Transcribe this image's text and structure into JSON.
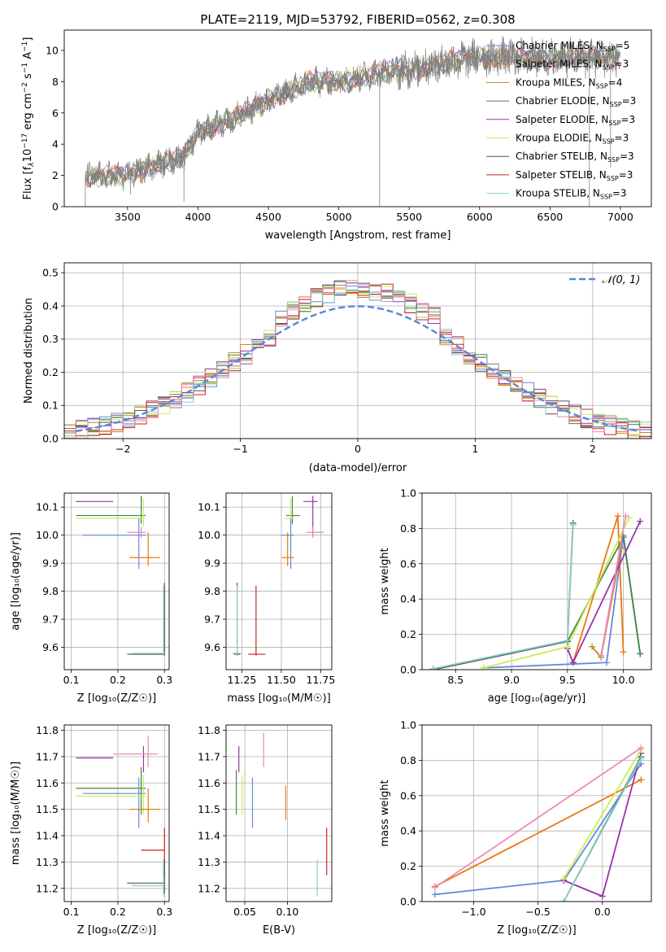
{
  "figure": {
    "title": "PLATE=2119, MJD=53792, FIBERID=0562, z=0.308"
  },
  "colors": {
    "chabrier_miles": "#6688dd",
    "salpeter_miles": "#ee7711",
    "kroupa_miles": "#bb8822",
    "chabrier_elodie": "#448844",
    "salpeter_elodie": "#9933aa",
    "kroupa_elodie": "#ccee55",
    "chabrier_stelib": "#555555",
    "salpeter_stelib": "#cc2222",
    "kroupa_stelib": "#88cccc",
    "pink": "#ee88bb",
    "gaussian": "#5588dd",
    "grid": "#b0b0b0"
  },
  "chart_data": [
    {
      "id": "spectrum",
      "type": "line",
      "title": "PLATE=2119, MJD=53792, FIBERID=0562, z=0.308",
      "xlabel": "wavelength [Angstrom, rest frame]",
      "ylabel_parts": [
        "Flux [f",
        "λ",
        "10",
        "−17",
        " erg cm",
        "−2",
        " s",
        "−1",
        " A",
        "−1",
        "]"
      ],
      "xlim": [
        3050,
        7220
      ],
      "ylim": [
        0,
        11.3
      ],
      "xticks": [
        3500,
        4000,
        4500,
        5000,
        5500,
        6000,
        6500,
        7000
      ],
      "yticks": [
        0,
        2,
        4,
        6,
        8,
        10
      ],
      "grid": false,
      "legend_position": "right",
      "data_range": [
        3200,
        7000
      ],
      "continuum": [
        [
          3200,
          1.9
        ],
        [
          3500,
          2.0
        ],
        [
          3700,
          2.7
        ],
        [
          3900,
          3.2
        ],
        [
          4000,
          4.8
        ],
        [
          4200,
          5.4
        ],
        [
          4500,
          6.8
        ],
        [
          4800,
          8.0
        ],
        [
          5000,
          8.0
        ],
        [
          5300,
          8.6
        ],
        [
          5500,
          8.8
        ],
        [
          5800,
          9.3
        ],
        [
          6000,
          9.6
        ],
        [
          6500,
          9.5
        ],
        [
          7000,
          9.6
        ]
      ],
      "series": [
        {
          "name": "Chabrier MILES, N",
          "sub": "SSP",
          "suffix": "=5",
          "color_key": "chabrier_miles"
        },
        {
          "name": "Salpeter MILES, N",
          "sub": "SSP",
          "suffix": "=3",
          "color_key": "salpeter_miles"
        },
        {
          "name": "Kroupa MILES, N",
          "sub": "SSP",
          "suffix": "=4",
          "color_key": "kroupa_miles"
        },
        {
          "name": "Chabrier ELODIE, N",
          "sub": "SSP",
          "suffix": "=3",
          "color_key": "chabrier_elodie"
        },
        {
          "name": "Salpeter ELODIE, N",
          "sub": "SSP",
          "suffix": "=3",
          "color_key": "salpeter_elodie"
        },
        {
          "name": "Kroupa ELODIE, N",
          "sub": "SSP",
          "suffix": "=3",
          "color_key": "kroupa_elodie"
        },
        {
          "name": "Chabrier STELIB, N",
          "sub": "SSP",
          "suffix": "=3",
          "color_key": "chabrier_stelib"
        },
        {
          "name": "Salpeter STELIB, N",
          "sub": "SSP",
          "suffix": "=3",
          "color_key": "salpeter_stelib"
        },
        {
          "name": "Kroupa STELIB, N",
          "sub": "SSP",
          "suffix": "=3",
          "color_key": "kroupa_stelib"
        }
      ]
    },
    {
      "id": "residuals",
      "type": "histogram",
      "xlabel": "(data-model)/error",
      "ylabel": "Normed distribution",
      "xlim": [
        -2.5,
        2.5
      ],
      "ylim": [
        0,
        0.53
      ],
      "xticks": [
        -2,
        -1,
        0,
        1,
        2
      ],
      "yticks": [
        0.0,
        0.1,
        0.2,
        0.3,
        0.4,
        0.5
      ],
      "grid": true,
      "legend_position": "top-right",
      "legend": "𝒩(0, 1)",
      "bin_width": 0.1,
      "sigma": 1.0,
      "peak_scale": 1.13,
      "model_colors": [
        "chabrier_miles",
        "salpeter_miles",
        "kroupa_miles",
        "chabrier_elodie",
        "salpeter_elodie",
        "kroupa_elodie",
        "chabrier_stelib",
        "salpeter_stelib",
        "kroupa_stelib",
        "pink"
      ]
    },
    {
      "id": "z_age",
      "type": "errorbar",
      "xlabel": "Z [log₁₀(Z/Z☉)]",
      "ylabel": "age  [log₁₀(age/yr)]",
      "xlim": [
        0.085,
        0.31
      ],
      "ylim": [
        9.52,
        10.15
      ],
      "xticks": [
        0.1,
        0.2,
        0.3
      ],
      "yticks": [
        9.6,
        9.7,
        9.8,
        9.9,
        10.0,
        10.1
      ],
      "grid": true,
      "points": [
        {
          "color_key": "salpeter_elodie",
          "x": 0.25,
          "xerr": [
            0.11,
            0.19
          ],
          "y": 10.12,
          "yerr": [
            10.09,
            10.14
          ]
        },
        {
          "color_key": "chabrier_elodie",
          "x": 0.25,
          "xerr": [
            0.11,
            0.26
          ],
          "y": 10.07,
          "yerr": [
            10.04,
            10.14
          ]
        },
        {
          "color_key": "kroupa_elodie",
          "x": 0.255,
          "xerr": [
            0.11,
            0.26
          ],
          "y": 10.06,
          "yerr": [
            10.03,
            10.13
          ]
        },
        {
          "color_key": "chabrier_miles",
          "x": 0.245,
          "xerr": [
            0.125,
            0.26
          ],
          "y": 10.0,
          "yerr": [
            9.88,
            10.06
          ]
        },
        {
          "color_key": "pink",
          "x": 0.25,
          "xerr": [
            0.22,
            0.26
          ],
          "y": 10.01,
          "yerr": [
            9.99,
            10.03
          ]
        },
        {
          "color_key": "salpeter_miles",
          "x": 0.265,
          "xerr": [
            0.225,
            0.29
          ],
          "y": 9.92,
          "yerr": [
            9.89,
            10.01
          ]
        },
        {
          "color_key": "chabrier_stelib",
          "x": 0.3,
          "xerr": [
            0.22,
            0.3
          ],
          "y": 9.575,
          "yerr": [
            9.57,
            9.83
          ]
        },
        {
          "color_key": "kroupa_stelib",
          "x": 0.298,
          "xerr": [
            0.23,
            0.3
          ],
          "y": 9.578,
          "yerr": [
            9.57,
            9.82
          ]
        }
      ]
    },
    {
      "id": "mass_age",
      "type": "errorbar",
      "xlabel": "mass [log₁₀(M/M☉)]",
      "ylabel": "",
      "xlim": [
        11.15,
        11.82
      ],
      "ylim": [
        9.52,
        10.15
      ],
      "xticks": [
        11.25,
        11.5,
        11.75
      ],
      "yticks": [
        9.6,
        9.7,
        9.8,
        9.9,
        10.0,
        10.1
      ],
      "grid": true,
      "points": [
        {
          "color_key": "salpeter_elodie",
          "x": 11.7,
          "xerr": [
            11.64,
            11.73
          ],
          "y": 10.12,
          "yerr": [
            10.0,
            10.14
          ]
        },
        {
          "color_key": "chabrier_elodie",
          "x": 11.57,
          "xerr": [
            11.53,
            11.62
          ],
          "y": 10.07,
          "yerr": [
            10.04,
            10.14
          ]
        },
        {
          "color_key": "kroupa_elodie",
          "x": 11.56,
          "xerr": [
            11.52,
            11.58
          ],
          "y": 10.06,
          "yerr": [
            10.03,
            10.13
          ]
        },
        {
          "color_key": "chabrier_miles",
          "x": 11.56,
          "xerr": [
            11.5,
            11.58
          ],
          "y": 10.0,
          "yerr": [
            9.88,
            10.06
          ]
        },
        {
          "color_key": "pink",
          "x": 11.7,
          "xerr": [
            11.66,
            11.77
          ],
          "y": 10.01,
          "yerr": [
            9.99,
            10.03
          ]
        },
        {
          "color_key": "salpeter_miles",
          "x": 11.54,
          "xerr": [
            11.5,
            11.58
          ],
          "y": 9.92,
          "yerr": [
            9.89,
            10.01
          ]
        },
        {
          "color_key": "salpeter_stelib",
          "x": 11.34,
          "xerr": [
            11.29,
            11.4
          ],
          "y": 9.575,
          "yerr": [
            9.57,
            9.82
          ]
        },
        {
          "color_key": "chabrier_stelib",
          "x": 11.22,
          "xerr": [
            11.2,
            11.24
          ],
          "y": 9.575,
          "yerr": [
            9.57,
            9.83
          ]
        },
        {
          "color_key": "kroupa_stelib",
          "x": 11.22,
          "xerr": [
            11.19,
            11.25
          ],
          "y": 9.578,
          "yerr": [
            9.57,
            9.82
          ]
        }
      ]
    },
    {
      "id": "age_weight",
      "type": "line",
      "xlabel": "age  [log₁₀(age/yr)]",
      "ylabel": "mass weight",
      "xlim": [
        8.2,
        10.25
      ],
      "ylim": [
        0,
        1.0
      ],
      "xticks": [
        8.5,
        9.0,
        9.5,
        10.0
      ],
      "yticks": [
        0.0,
        0.2,
        0.4,
        0.6,
        0.8,
        1.0
      ],
      "grid": true,
      "series": [
        {
          "color_key": "chabrier_miles",
          "x": [
            8.75,
            9.85,
            10.0,
            10.15
          ],
          "y": [
            0.01,
            0.04,
            0.76,
            0.09
          ]
        },
        {
          "color_key": "salpeter_miles",
          "x": [
            9.55,
            9.95,
            10.0
          ],
          "y": [
            0.04,
            0.87,
            0.1
          ]
        },
        {
          "color_key": "kroupa_miles",
          "x": [
            9.72,
            9.8,
            9.98
          ],
          "y": [
            0.13,
            0.07,
            0.69
          ]
        },
        {
          "color_key": "chabrier_elodie",
          "x": [
            9.5,
            10.0,
            10.15
          ],
          "y": [
            0.16,
            0.75,
            0.09
          ]
        },
        {
          "color_key": "salpeter_elodie",
          "x": [
            9.5,
            9.55,
            10.15
          ],
          "y": [
            0.12,
            0.04,
            0.84
          ]
        },
        {
          "color_key": "kroupa_elodie",
          "x": [
            8.75,
            9.5,
            10.05
          ],
          "y": [
            0.01,
            0.13,
            0.86
          ]
        },
        {
          "color_key": "chabrier_stelib",
          "x": [
            8.3,
            9.5,
            9.55
          ],
          "y": [
            0.0,
            0.16,
            0.83
          ]
        },
        {
          "color_key": "kroupa_stelib",
          "x": [
            8.3,
            9.5,
            9.55
          ],
          "y": [
            0.005,
            0.165,
            0.82
          ]
        },
        {
          "color_key": "pink",
          "x": [
            9.8,
            10.02
          ],
          "y": [
            0.08,
            0.87
          ]
        }
      ]
    },
    {
      "id": "z_mass",
      "type": "errorbar",
      "xlabel": "Z [log₁₀(Z/Z☉)]",
      "ylabel": "mass [log₁₀(M/M☉)]",
      "xlim": [
        0.085,
        0.31
      ],
      "ylim": [
        11.15,
        11.82
      ],
      "xticks": [
        0.1,
        0.2,
        0.3
      ],
      "yticks": [
        11.2,
        11.3,
        11.4,
        11.5,
        11.6,
        11.7,
        11.8
      ],
      "grid": true,
      "points": [
        {
          "color_key": "salpeter_elodie",
          "x": 0.255,
          "xerr": [
            0.11,
            0.19
          ],
          "y": 11.695,
          "yerr": [
            11.64,
            11.74
          ]
        },
        {
          "color_key": "pink",
          "x": 0.265,
          "xerr": [
            0.19,
            0.285
          ],
          "y": 11.71,
          "yerr": [
            11.66,
            11.78
          ]
        },
        {
          "color_key": "chabrier_elodie",
          "x": 0.25,
          "xerr": [
            0.11,
            0.26
          ],
          "y": 11.58,
          "yerr": [
            11.48,
            11.66
          ]
        },
        {
          "color_key": "chabrier_miles",
          "x": 0.245,
          "xerr": [
            0.125,
            0.26
          ],
          "y": 11.56,
          "yerr": [
            11.43,
            11.62
          ]
        },
        {
          "color_key": "kroupa_elodie",
          "x": 0.255,
          "xerr": [
            0.11,
            0.26
          ],
          "y": 11.55,
          "yerr": [
            11.48,
            11.63
          ]
        },
        {
          "color_key": "salpeter_miles",
          "x": 0.265,
          "xerr": [
            0.225,
            0.29
          ],
          "y": 11.5,
          "yerr": [
            11.45,
            11.58
          ]
        },
        {
          "color_key": "salpeter_stelib",
          "x": 0.3,
          "xerr": [
            0.25,
            0.3
          ],
          "y": 11.345,
          "yerr": [
            11.25,
            11.43
          ]
        },
        {
          "color_key": "chabrier_stelib",
          "x": 0.3,
          "xerr": [
            0.22,
            0.3
          ],
          "y": 11.22,
          "yerr": [
            11.18,
            11.31
          ]
        },
        {
          "color_key": "kroupa_stelib",
          "x": 0.298,
          "xerr": [
            0.23,
            0.3
          ],
          "y": 11.21,
          "yerr": [
            11.17,
            11.31
          ]
        }
      ]
    },
    {
      "id": "ebv_mass",
      "type": "errorbar",
      "xlabel": "E(B-V)",
      "ylabel": "",
      "xlim": [
        0.028,
        0.152
      ],
      "ylim": [
        11.15,
        11.82
      ],
      "xticks": [
        0.05,
        0.1
      ],
      "yticks": [
        11.2,
        11.3,
        11.4,
        11.5,
        11.6,
        11.7,
        11.8
      ],
      "grid": true,
      "points": [
        {
          "color_key": "pink",
          "x": 0.072,
          "y": 11.72,
          "yerr": [
            11.66,
            11.79
          ]
        },
        {
          "color_key": "salpeter_elodie",
          "x": 0.043,
          "y": 11.7,
          "yerr": [
            11.64,
            11.74
          ]
        },
        {
          "color_key": "chabrier_elodie",
          "x": 0.04,
          "y": 11.58,
          "yerr": [
            11.48,
            11.65
          ]
        },
        {
          "color_key": "chabrier_miles",
          "x": 0.059,
          "y": 11.52,
          "yerr": [
            11.43,
            11.62
          ]
        },
        {
          "color_key": "kroupa_elodie",
          "x": 0.047,
          "y": 11.55,
          "yerr": [
            11.48,
            11.63
          ]
        },
        {
          "color_key": "salpeter_miles",
          "x": 0.098,
          "y": 11.52,
          "yerr": [
            11.46,
            11.59
          ]
        },
        {
          "color_key": "salpeter_stelib",
          "x": 0.146,
          "y": 11.34,
          "yerr": [
            11.25,
            11.43
          ]
        },
        {
          "color_key": "kroupa_stelib",
          "x": 0.135,
          "y": 11.24,
          "yerr": [
            11.17,
            11.31
          ]
        }
      ]
    },
    {
      "id": "z_weight",
      "type": "line",
      "xlabel": "Z [log₁₀(Z/Z☉)]",
      "ylabel": "mass weight",
      "xlim": [
        -1.4,
        0.38
      ],
      "ylim": [
        0,
        1.0
      ],
      "xticks": [
        -1.0,
        -0.5,
        0.0
      ],
      "yticks": [
        0.0,
        0.2,
        0.4,
        0.6,
        0.8,
        1.0
      ],
      "grid": true,
      "series": [
        {
          "color_key": "chabrier_miles",
          "x": [
            -1.3,
            -0.3,
            0.3
          ],
          "y": [
            0.04,
            0.12,
            0.78
          ]
        },
        {
          "color_key": "salpeter_miles",
          "x": [
            -1.3,
            0.3
          ],
          "y": [
            0.085,
            0.69
          ]
        },
        {
          "color_key": "salpeter_elodie",
          "x": [
            -0.3,
            0.0,
            0.3
          ],
          "y": [
            0.12,
            0.03,
            0.84
          ]
        },
        {
          "color_key": "kroupa_elodie",
          "x": [
            -0.3,
            0.3
          ],
          "y": [
            0.13,
            0.86
          ]
        },
        {
          "color_key": "chabrier_elodie",
          "x": [
            -0.3,
            0.3
          ],
          "y": [
            0.0,
            0.82
          ]
        },
        {
          "color_key": "kroupa_stelib",
          "x": [
            -0.3,
            0.3
          ],
          "y": [
            0.0,
            0.81
          ]
        },
        {
          "color_key": "pink",
          "x": [
            -1.3,
            0.3
          ],
          "y": [
            0.08,
            0.87
          ]
        }
      ]
    }
  ]
}
